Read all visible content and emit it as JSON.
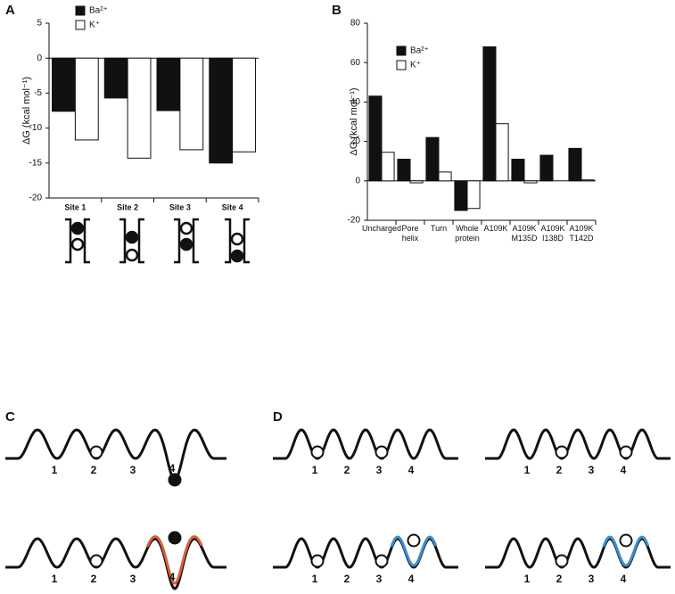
{
  "chart_data": [
    {
      "type": "bar",
      "panel": "A",
      "y_label": "ΔG (kcal mol⁻¹)",
      "categories": [
        "Site 1",
        "Site 2",
        "Site 3",
        "Site 4"
      ],
      "series": [
        {
          "name": "Ba²⁺",
          "color": "#111111",
          "values": [
            -7.6,
            -5.7,
            -7.5,
            -15.0
          ]
        },
        {
          "name": "K⁺",
          "color": "#ffffff",
          "values": [
            -11.7,
            -14.3,
            -13.1,
            -13.4
          ]
        }
      ],
      "ylim": [
        -20,
        5
      ],
      "yticks": [
        5,
        0,
        -5,
        -10,
        -15,
        -20
      ]
    },
    {
      "type": "bar",
      "panel": "B",
      "y_label": "ΔG (kcal mol⁻¹)",
      "categories": [
        "Uncharged",
        "Pore helix",
        "Turn",
        "Whole protein",
        "A109K",
        "A109K M135D",
        "A109K I138D",
        "A109K T142D"
      ],
      "series": [
        {
          "name": "Ba²⁺",
          "color": "#111111",
          "values": [
            43,
            11,
            22,
            -15,
            68,
            11,
            13,
            16.5
          ]
        },
        {
          "name": "K⁺",
          "color": "#ffffff",
          "values": [
            14.5,
            -1,
            4.5,
            -14,
            29,
            -1,
            0,
            0.5
          ]
        }
      ],
      "ylim": [
        -20,
        80
      ],
      "yticks": [
        -20,
        0,
        20,
        40,
        60,
        80
      ]
    }
  ],
  "diagrams": {
    "C": {
      "panel": "C",
      "site_labels": [
        "1",
        "2",
        "3",
        "4"
      ]
    },
    "D": {
      "panel": "D",
      "site_labels": [
        "1",
        "2",
        "3",
        "4"
      ]
    }
  }
}
